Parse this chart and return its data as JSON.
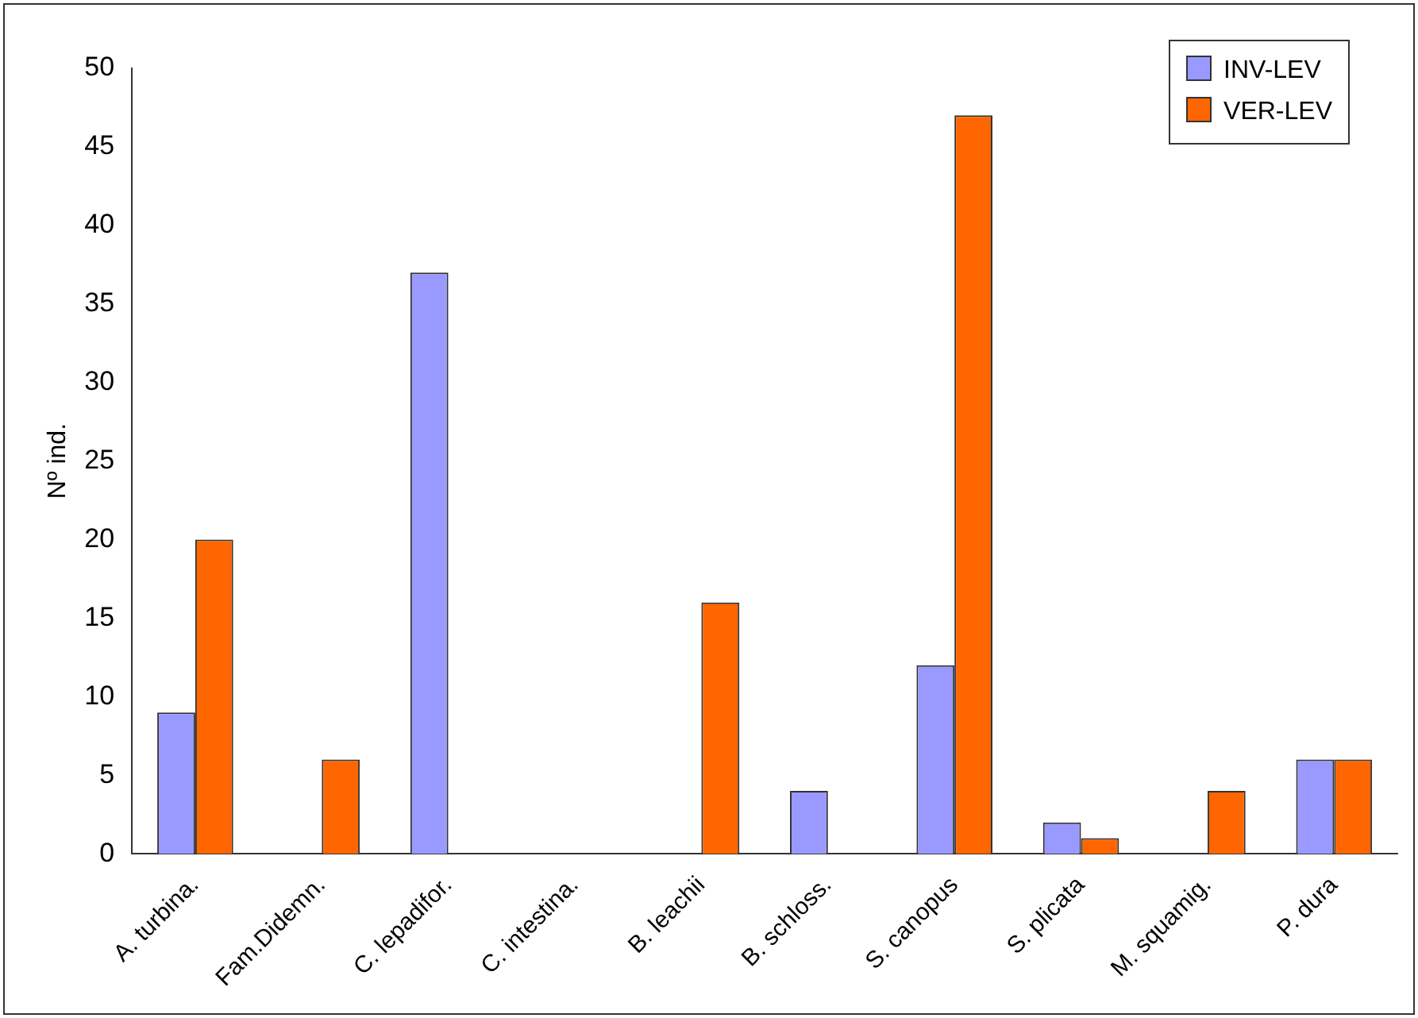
{
  "chart_data": {
    "type": "bar",
    "ylabel": "Nº ind.",
    "categories": [
      "A. turbina.",
      "Fam.Didemn.",
      "C. lepadifor.",
      "C. intestina.",
      "B. leachii",
      "B. schloss.",
      "S. canopus",
      "S. plicata",
      "M. squamig.",
      "P. dura"
    ],
    "series": [
      {
        "name": "INV-LEV",
        "color": "#9999ff",
        "values": [
          9,
          0,
          37,
          0,
          0,
          4,
          12,
          2,
          0,
          6
        ]
      },
      {
        "name": "VER-LEV",
        "color": "#ff6600",
        "values": [
          20,
          6,
          0,
          0,
          16,
          0,
          47,
          1,
          4,
          6
        ]
      }
    ],
    "ylim": [
      0,
      50
    ],
    "yticks": [
      0,
      5,
      10,
      15,
      20,
      25,
      30,
      35,
      40,
      45,
      50
    ],
    "grid": false,
    "legend": "top right"
  }
}
